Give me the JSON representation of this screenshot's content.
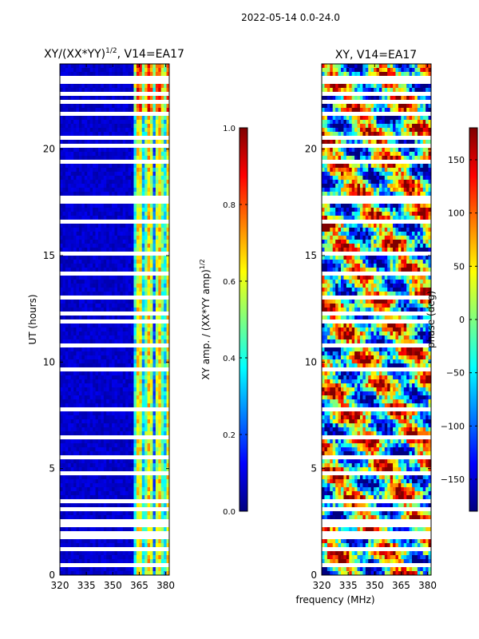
{
  "figure": {
    "suptitle": "2022-05-14 0.0-24.0",
    "xlabel": "frequency (MHz)"
  },
  "colors": {
    "jet": [
      "#00007f",
      "#0000ff",
      "#007fff",
      "#00ffff",
      "#7fff7f",
      "#ffff00",
      "#ff7f00",
      "#ff0000",
      "#7f0000"
    ],
    "background": "#00008f",
    "gap": "#ffffff"
  },
  "chart_data": [
    {
      "type": "heatmap",
      "title": "XY/(XX*YY)^1/2, V14=EA17",
      "title_main": "XY/(XX*YY)",
      "title_exp": "1/2",
      "title_suffix": ", V14=EA17",
      "ylabel": "UT (hours)",
      "xlim": [
        320,
        382
      ],
      "ylim": [
        0,
        24
      ],
      "xticks": [
        320,
        335,
        350,
        365,
        380
      ],
      "yticks": [
        0,
        5,
        10,
        15,
        20
      ],
      "colorbar": {
        "label_main": "XY amp. / (XX*YY amp)",
        "label_exp": "1/2",
        "range": [
          0.0,
          1.0
        ],
        "ticks": [
          "0.0",
          "0.2",
          "0.4",
          "0.6",
          "0.8",
          "1.0"
        ]
      },
      "note": "Mostly low amplitude (~0.0-0.1) below 362 MHz; bright vertical stripes (0.3-0.7) between ~362-382 MHz; white horizontal gaps = flagged times."
    },
    {
      "type": "heatmap",
      "title": "XY, V14=EA17",
      "xlim": [
        320,
        382
      ],
      "ylim": [
        0,
        24
      ],
      "xticks": [
        320,
        335,
        350,
        365,
        380
      ],
      "yticks": [
        0,
        5,
        10,
        15,
        20
      ],
      "colorbar": {
        "label": "phase (deg)",
        "range": [
          -180,
          180
        ],
        "ticks": [
          "−150",
          "−100",
          "−50",
          "0",
          "50",
          "100",
          "150"
        ]
      },
      "note": "Phase spans full -180 to 180 deg range; noisy structured pattern with white gaps at flagged times."
    }
  ]
}
